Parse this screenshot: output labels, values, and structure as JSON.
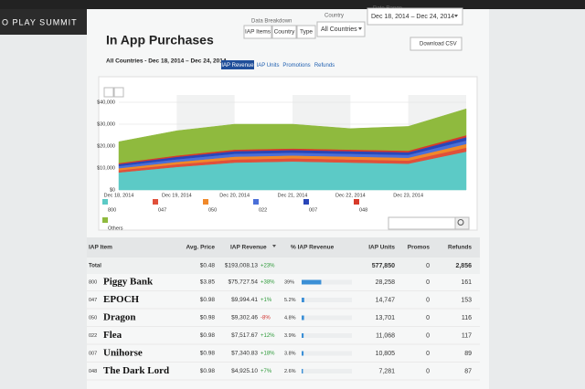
{
  "banner": "O PLAY SUMMIT",
  "header": {
    "title": "In App Purchases",
    "subtitle": "All Countries - Dec 18, 2014 – Dec 24, 2014"
  },
  "filters": {
    "breakdown_label": "Data Breakdown",
    "breakdown": [
      "IAP Items",
      "Country",
      "Type"
    ],
    "country_label": "Country",
    "country": "All Countries",
    "date_label": "Date Range",
    "date": "Dec 18, 2014 – Dec 24, 2014"
  },
  "tabs": [
    "IAP Revenue",
    "IAP Units",
    "Promotions",
    "Refunds"
  ],
  "download": "Download CSV",
  "chart_data": {
    "type": "area",
    "stacked": true,
    "grid": true,
    "x": [
      "Dec 18, 2014",
      "Dec 19, 2014",
      "Dec 20, 2014",
      "Dec 21, 2014",
      "Dec 22, 2014",
      "Dec 23, 2014",
      null
    ],
    "ylim": [
      0,
      40000
    ],
    "yticks": [
      {
        "value": 0,
        "label": "$0"
      },
      {
        "value": 10000,
        "label": "$10,000"
      },
      {
        "value": 20000,
        "label": "$20,000"
      },
      {
        "value": 30000,
        "label": "$30,000"
      },
      {
        "value": 40000,
        "label": "$40,000"
      }
    ],
    "series": [
      {
        "name": "800",
        "color": "#5ccac6",
        "values": [
          8000,
          10500,
          12500,
          13000,
          12500,
          12000,
          17500
        ]
      },
      {
        "name": "047",
        "color": "#e0503a",
        "values": [
          1000,
          1200,
          1400,
          1400,
          1400,
          1400,
          1800
        ]
      },
      {
        "name": "050",
        "color": "#f0892a",
        "values": [
          900,
          1100,
          1300,
          1300,
          1300,
          1300,
          1700
        ]
      },
      {
        "name": "022",
        "color": "#4a6fd8",
        "values": [
          1000,
          1200,
          1300,
          1300,
          1300,
          1300,
          1600
        ]
      },
      {
        "name": "007",
        "color": "#2946b8",
        "values": [
          900,
          1100,
          1200,
          1200,
          1200,
          1200,
          1500
        ]
      },
      {
        "name": "048",
        "color": "#d73a2a",
        "values": [
          500,
          600,
          700,
          700,
          700,
          700,
          900
        ]
      },
      {
        "name": "Others",
        "color": "#8fba3e",
        "values": [
          9700,
          11300,
          11600,
          11100,
          9600,
          11100,
          12000
        ]
      }
    ]
  },
  "table": {
    "columns": [
      "IAP Item",
      "Avg. Price",
      "IAP Revenue",
      "% IAP Revenue",
      "IAP Units",
      "Promos",
      "Refunds"
    ],
    "total": {
      "label": "Total",
      "price": "$0.48",
      "revenue": "$193,008.13",
      "change": "+23%",
      "units": "577,850",
      "promos": "0",
      "refunds": "2,856"
    },
    "rows": [
      {
        "code": "800",
        "name": "Piggy Bank",
        "price": "$3.85",
        "revenue": "$75,727.54",
        "change": "+38%",
        "share": {
          "value": 39,
          "label": "39%"
        },
        "units": "28,258",
        "promos": "0",
        "refunds": "161"
      },
      {
        "code": "047",
        "name": "EPOCH",
        "price": "$0.98",
        "revenue": "$9,994.41",
        "change": "+1%",
        "share": {
          "value": 5.2,
          "label": "5.2%"
        },
        "units": "14,747",
        "promos": "0",
        "refunds": "153"
      },
      {
        "code": "050",
        "name": "Dragon",
        "price": "$0.98",
        "revenue": "$9,302.46",
        "change": "-8%",
        "share": {
          "value": 4.8,
          "label": "4.8%"
        },
        "units": "13,701",
        "promos": "0",
        "refunds": "116"
      },
      {
        "code": "022",
        "name": "Flea",
        "price": "$0.98",
        "revenue": "$7,517.67",
        "change": "+12%",
        "share": {
          "value": 3.9,
          "label": "3.9%"
        },
        "units": "11,068",
        "promos": "0",
        "refunds": "117"
      },
      {
        "code": "007",
        "name": "Unihorse",
        "price": "$0.98",
        "revenue": "$7,340.83",
        "change": "+18%",
        "share": {
          "value": 3.8,
          "label": "3.8%"
        },
        "units": "10,805",
        "promos": "0",
        "refunds": "89"
      },
      {
        "code": "048",
        "name": "The Dark Lord",
        "price": "$0.98",
        "revenue": "$4,925.10",
        "change": "+7%",
        "share": {
          "value": 2.6,
          "label": "2.6%"
        },
        "units": "7,281",
        "promos": "0",
        "refunds": "87"
      }
    ]
  }
}
